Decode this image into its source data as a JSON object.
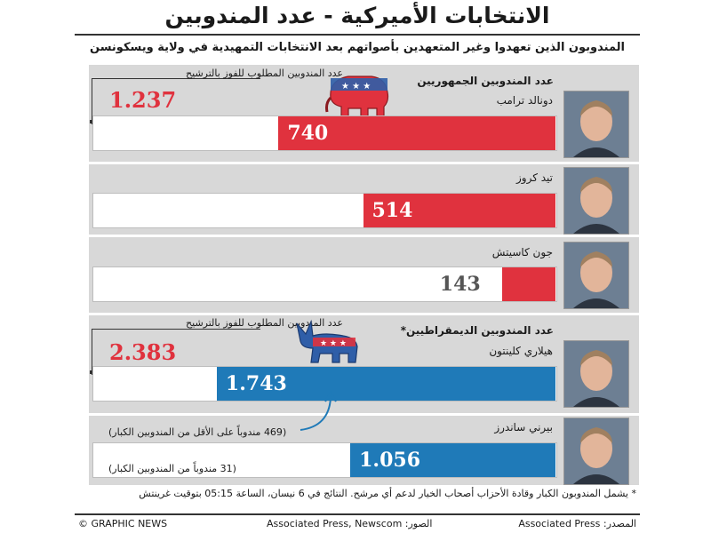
{
  "header": {
    "title": "الانتخابات الأميركية - عدد المندوبين",
    "subtitle": "المندوبون الذين تعهدوا وغير المتعهدين بأصواتهم بعد الانتخابات التمهيدية في ولاية ويسكونسن"
  },
  "republicans": {
    "section_label": "عدد المندوبين الجمهوريين",
    "required_label": "عدد المندوبين المطلوب للفوز بالترشيح",
    "required_value": "1.237",
    "party_icon": "elephant-icon"
  },
  "democrats": {
    "section_label": "عدد المندوبين الديمقراطيين*",
    "required_label": "عدد المندوبين المطلوب للفوز بالترشيح",
    "required_value": "2.383",
    "party_icon": "donkey-icon"
  },
  "chart_data": {
    "type": "bar",
    "orientation": "horizontal",
    "title": "الانتخابات الأميركية - عدد المندوبين",
    "groups": [
      {
        "name": "عدد المندوبين الجمهوريين",
        "target": 1237,
        "target_label": "1.237",
        "color": "#e0323e",
        "candidates": [
          {
            "name": "دونالد ترامب",
            "value": 740,
            "label": "740"
          },
          {
            "name": "تيد كروز",
            "value": 514,
            "label": "514"
          },
          {
            "name": "جون كاسيتش",
            "value": 143,
            "label": "143"
          }
        ]
      },
      {
        "name": "عدد المندوبين الديمقراطيين*",
        "target": 2383,
        "target_label": "2.383",
        "color": "#1f7ab8",
        "candidates": [
          {
            "name": "هيلاري كلينتون",
            "value": 1743,
            "label": "1.743",
            "note": "(469 مندوباً على الأقل من المندوبين الكبار)"
          },
          {
            "name": "بيرني ساندرز",
            "value": 1056,
            "label": "1.056",
            "note": "(31 مندوباً من المندوبين الكبار)"
          }
        ]
      }
    ]
  },
  "footnote": "* يشمل المندوبون الكبار وقادة الأحزاب أصحاب الخيار لدعم أي مرشح. النتائج في 6 نيسان، الساعة 05:15 بتوقيت غرينتش",
  "footer": {
    "credit": "© GRAPHIC NEWS",
    "photos": "الصور: Associated Press, Newscom",
    "source": "المصدر: Associated Press"
  },
  "colors": {
    "republican": "#e0323e",
    "democrat": "#1f7ab8",
    "panel": "#d8d8d8"
  }
}
